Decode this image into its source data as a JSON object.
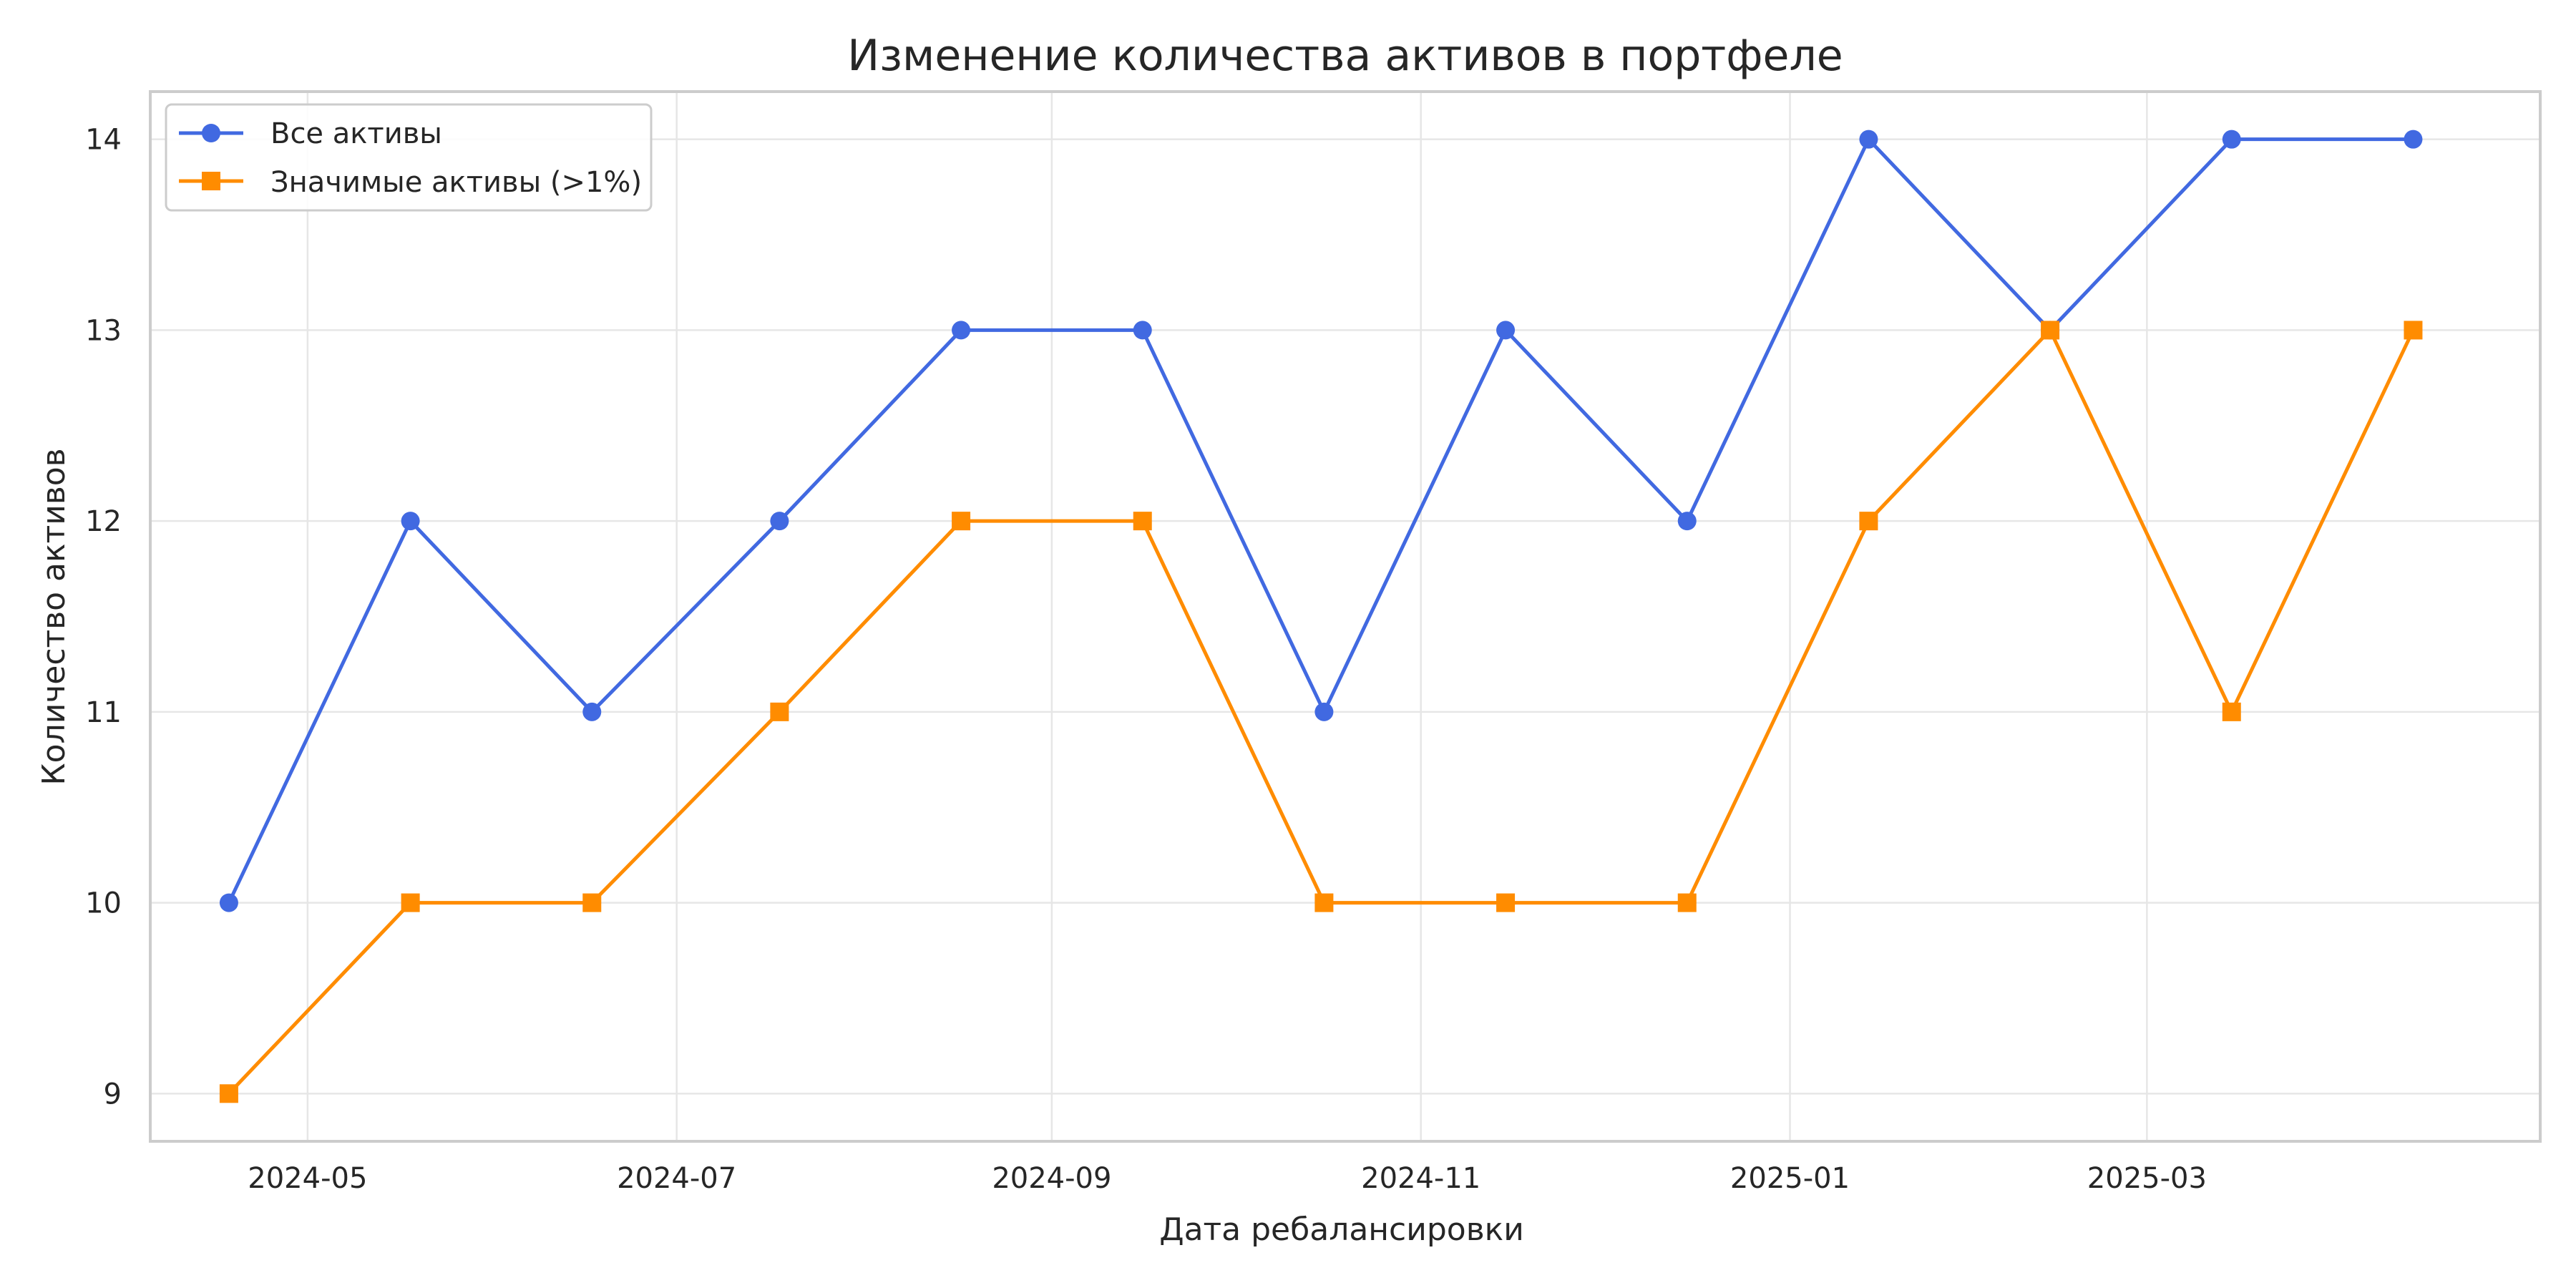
{
  "chart_data": {
    "type": "line",
    "title": "Изменение количества активов в портфеле",
    "xlabel": "Дата ребалансировки",
    "ylabel": "Количество активов",
    "x": [
      "2024-04-18",
      "2024-05-18",
      "2024-06-17",
      "2024-07-18",
      "2024-08-17",
      "2024-09-16",
      "2024-10-16",
      "2024-11-15",
      "2024-12-15",
      "2025-01-14",
      "2025-02-13",
      "2025-03-15",
      "2025-04-14"
    ],
    "x_ticks": [
      "2024-05",
      "2024-07",
      "2024-09",
      "2024-11",
      "2025-01",
      "2025-03"
    ],
    "y_ticks": [
      9,
      10,
      11,
      12,
      13,
      14
    ],
    "xlim": [
      "2024-04-05",
      "2025-05-05"
    ],
    "ylim": [
      8.75,
      14.25
    ],
    "grid": true,
    "legend_position": "top-left",
    "series": [
      {
        "name": "Все активы",
        "marker": "circle",
        "color": "#4169E1",
        "values": [
          10,
          12,
          11,
          12,
          13,
          13,
          11,
          13,
          12,
          14,
          13,
          14,
          14
        ]
      },
      {
        "name": "Значимые активы (>1%)",
        "marker": "square",
        "color": "#FF8C00",
        "values": [
          9,
          10,
          10,
          11,
          12,
          12,
          10,
          10,
          10,
          12,
          13,
          11,
          13
        ]
      }
    ]
  }
}
